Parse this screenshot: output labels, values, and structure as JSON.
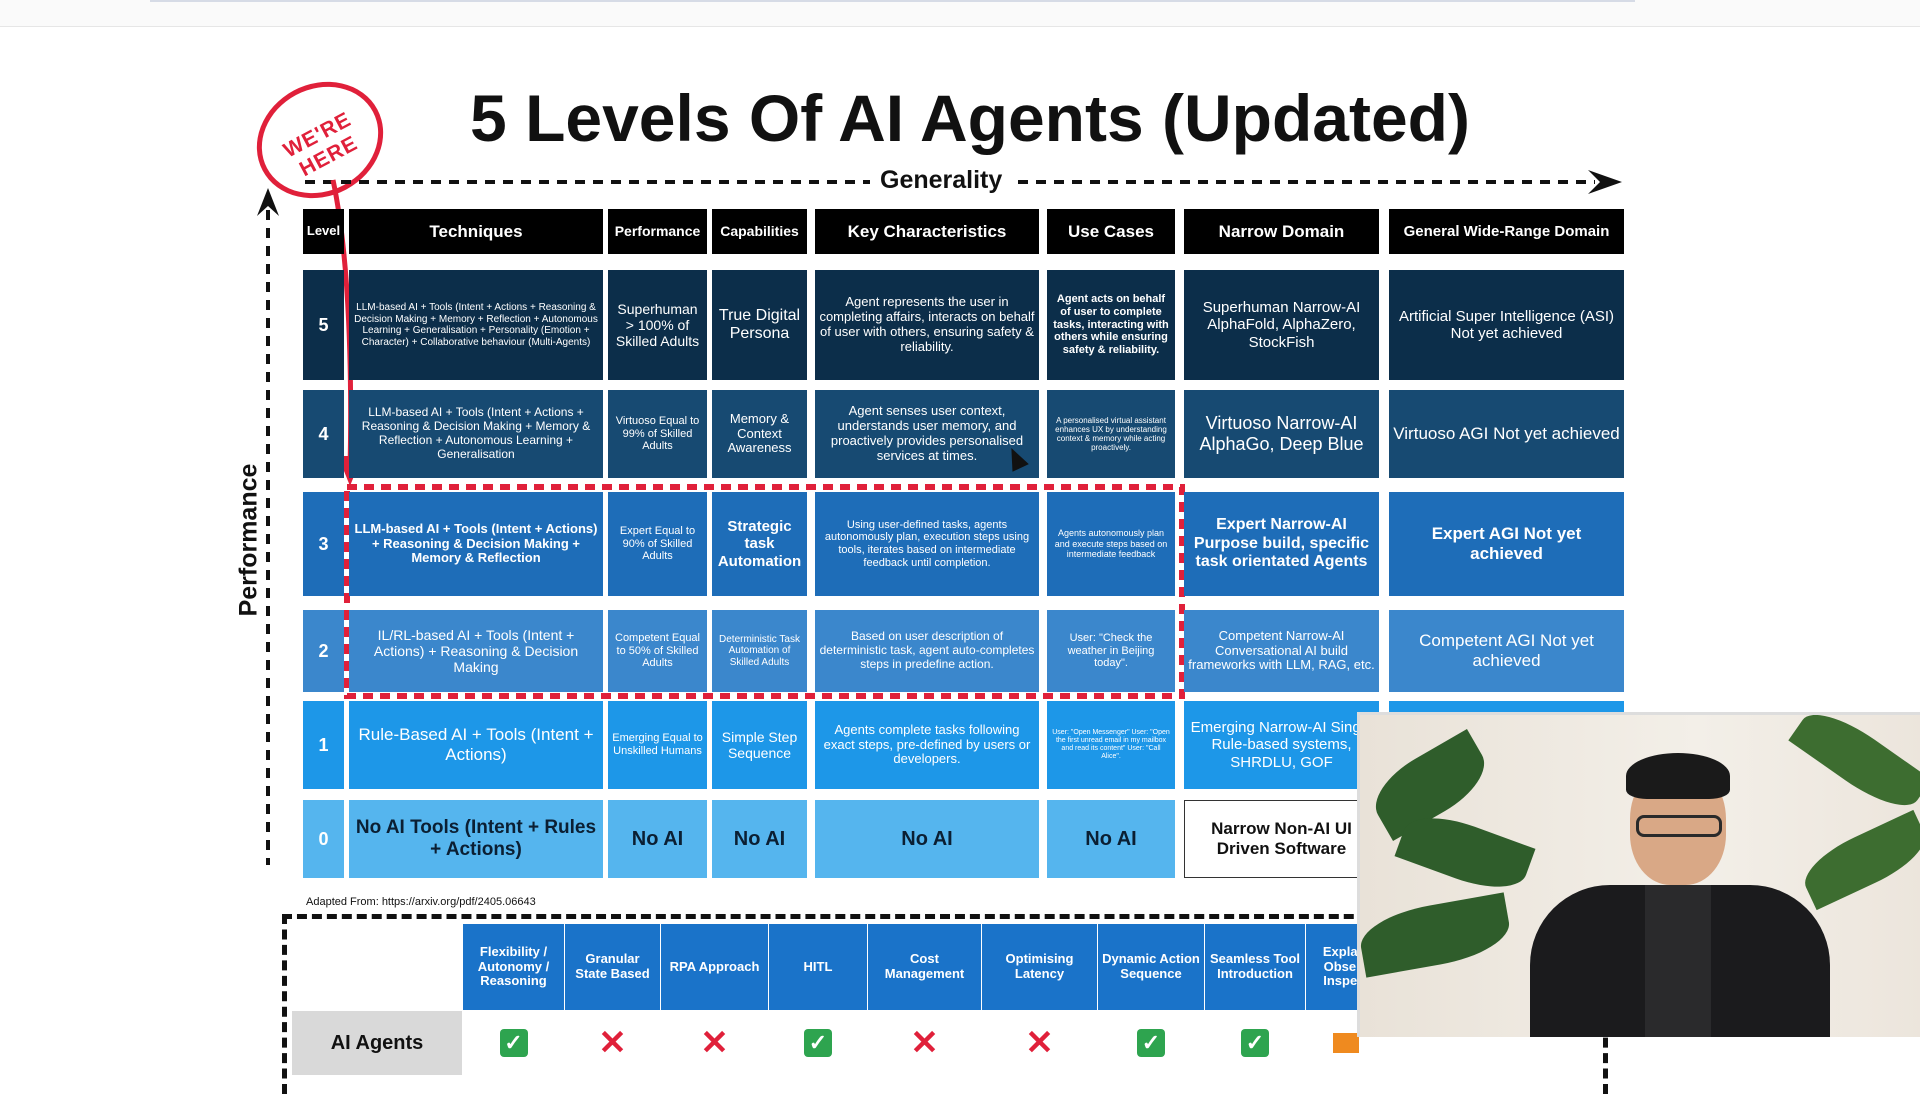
{
  "title": "5 Levels Of AI Agents (Updated)",
  "stamp_text": "WE'RE HERE",
  "generality_label": "Generality",
  "performance_label": "Performance",
  "headers": [
    "Level",
    "Techniques",
    "Performance",
    "Capabilities",
    "Key Characteristics",
    "Use Cases",
    "Narrow Domain",
    "General Wide-Range Domain"
  ],
  "rows": [
    {
      "level": "5",
      "techniques": "LLM-based AI + Tools (Intent + Actions + Reasoning & Decision Making + Memory + Reflection + Autonomous Learning + Generalisation + Personality (Emotion + Character) + Collaborative behaviour (Multi-Agents)",
      "performance": "Superhuman > 100% of Skilled Adults",
      "capabilities": "True Digital Persona",
      "key": "Agent represents the user in completing affairs, interacts on behalf of user with others, ensuring safety & reliability.",
      "use": "Agent acts on behalf of user to complete tasks, interacting with others while ensuring safety & reliability.",
      "narrow": "Superhuman Narrow-AI AlphaFold, AlphaZero, StockFish",
      "general": "Artificial Super Intelligence (ASI) Not yet achieved"
    },
    {
      "level": "4",
      "techniques": "LLM-based AI + Tools (Intent + Actions + Reasoning & Decision Making + Memory & Reflection + Autonomous Learning + Generalisation",
      "performance": "Virtuoso Equal to 99% of Skilled Adults",
      "capabilities": "Memory & Context Awareness",
      "key": "Agent senses user context, understands user memory, and proactively provides personalised services at times.",
      "use": "A personalised virtual assistant enhances UX by understanding context & memory while acting proactively.",
      "narrow": "Virtuoso Narrow-AI AlphaGo, Deep Blue",
      "general": "Virtuoso AGI Not yet achieved"
    },
    {
      "level": "3",
      "techniques": "LLM-based AI + Tools (Intent + Actions) + Reasoning & Decision Making + Memory & Reflection",
      "performance": "Expert Equal to 90% of Skilled Adults",
      "capabilities": "Strategic task Automation",
      "key": "Using user-defined tasks, agents autonomously plan, execution steps using tools, iterates based on intermediate feedback until completion.",
      "use": "Agents autonomously plan and execute steps based on intermediate feedback",
      "narrow": "Expert Narrow-AI Purpose build, specific task orientated Agents",
      "general": "Expert AGI Not yet achieved"
    },
    {
      "level": "2",
      "techniques": "IL/RL-based AI + Tools (Intent + Actions) + Reasoning & Decision Making",
      "performance": "Competent Equal to 50% of Skilled Adults",
      "capabilities": "Deterministic Task Automation of Skilled Adults",
      "key": "Based on user description of deterministic task, agent auto-completes steps in predefine action.",
      "use": "User: \"Check the weather in Beijing today\".",
      "narrow": "Competent Narrow-AI Conversational AI build frameworks with LLM, RAG, etc.",
      "general": "Competent AGI Not yet achieved"
    },
    {
      "level": "1",
      "techniques": "Rule-Based AI + Tools (Intent + Actions)",
      "performance": "Emerging Equal to Unskilled Humans",
      "capabilities": "Simple Step Sequence",
      "key": "Agents complete tasks following exact steps, pre-defined by users or developers.",
      "use": "User: \"Open Messenger\" User: \"Open the first unread email in my mailbox and read its content\" User: \"Call Alice\".",
      "narrow": "Emerging Narrow-AI Single Rule-based systems, SHRDLU, GOF",
      "general": ""
    },
    {
      "level": "0",
      "techniques": "No AI Tools (Intent + Rules + Actions)",
      "performance": "No AI",
      "capabilities": "No AI",
      "key": "No AI",
      "use": "No AI",
      "narrow": "Narrow Non-AI UI Driven Software",
      "general": ""
    }
  ],
  "source": "Adapted From: https://arxiv.org/pdf/2405.06643",
  "comparison": {
    "headers": [
      "Flexibility / Autonomy / Reasoning",
      "Granular State Based",
      "RPA Approach",
      "HITL",
      "Cost Management",
      "Optimising Latency",
      "Dynamic Action Sequence",
      "Seamless Tool Introduction",
      "Explain Observ Inspect"
    ],
    "row_label": "AI Agents",
    "values": [
      "check",
      "cross",
      "cross",
      "check",
      "cross",
      "cross",
      "check",
      "check",
      "partial"
    ]
  },
  "icons": {
    "check": "check-icon",
    "cross": "cross-icon",
    "partial": "partial-icon"
  },
  "colors": {
    "level5": "#0c2e4a",
    "level4": "#174a72",
    "level3": "#1e6db8",
    "level2": "#3b87cc",
    "level1": "#1d97e8",
    "level0": "#55b5ee",
    "highlight": "#e0203a",
    "check": "#2ea44f"
  }
}
